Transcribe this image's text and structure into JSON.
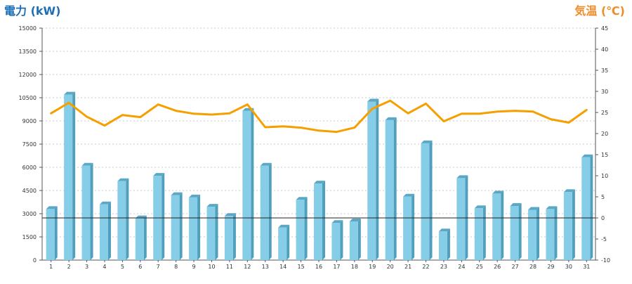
{
  "chart_data": {
    "type": "bar",
    "categories": [
      "1",
      "2",
      "3",
      "4",
      "5",
      "6",
      "7",
      "8",
      "9",
      "10",
      "11",
      "12",
      "13",
      "14",
      "15",
      "16",
      "17",
      "18",
      "19",
      "20",
      "21",
      "22",
      "23",
      "24",
      "25",
      "26",
      "27",
      "28",
      "29",
      "30",
      "31"
    ],
    "series": [
      {
        "axis": "left",
        "type": "bar",
        "values": [
          3300,
          10700,
          6100,
          3600,
          5100,
          2700,
          5450,
          4200,
          4050,
          3450,
          2850,
          9650,
          6100,
          2100,
          3900,
          4950,
          2400,
          2500,
          10250,
          9050,
          4100,
          7550,
          1850,
          5300,
          3350,
          4300,
          3500,
          3250,
          3300,
          4400,
          6650
        ]
      },
      {
        "axis": "right",
        "type": "line",
        "values": [
          24.8,
          27.3,
          24.0,
          21.9,
          24.4,
          23.9,
          26.9,
          25.4,
          24.7,
          24.5,
          24.8,
          26.9,
          21.5,
          21.7,
          21.4,
          20.7,
          20.4,
          21.4,
          25.9,
          27.8,
          24.8,
          27.1,
          22.9,
          24.7,
          24.7,
          25.2,
          25.4,
          25.2,
          23.4,
          22.6,
          25.6
        ]
      }
    ],
    "left_axis": {
      "label": "電力 (kW)",
      "ticks": [
        "0",
        "1500",
        "3000",
        "4500",
        "6000",
        "7500",
        "9000",
        "10500",
        "12000",
        "13500",
        "15000"
      ],
      "ylim": [
        0,
        15000
      ]
    },
    "right_axis": {
      "label": "気温 (℃)",
      "ticks": [
        "-10",
        "-5",
        "0",
        "5",
        "10",
        "15",
        "20",
        "25",
        "30",
        "35",
        "40",
        "45"
      ],
      "ylim": [
        -10,
        45
      ]
    },
    "reference_line": 0,
    "grid": true,
    "colors": {
      "bar_front": "#86cde7",
      "bar_side": "#4f9fbd",
      "bar_top": "#5aa8c5",
      "line": "#f5a000",
      "left_title": "#1b6fb6",
      "right_title": "#f08c28",
      "grid": "#c8c8c8"
    }
  }
}
